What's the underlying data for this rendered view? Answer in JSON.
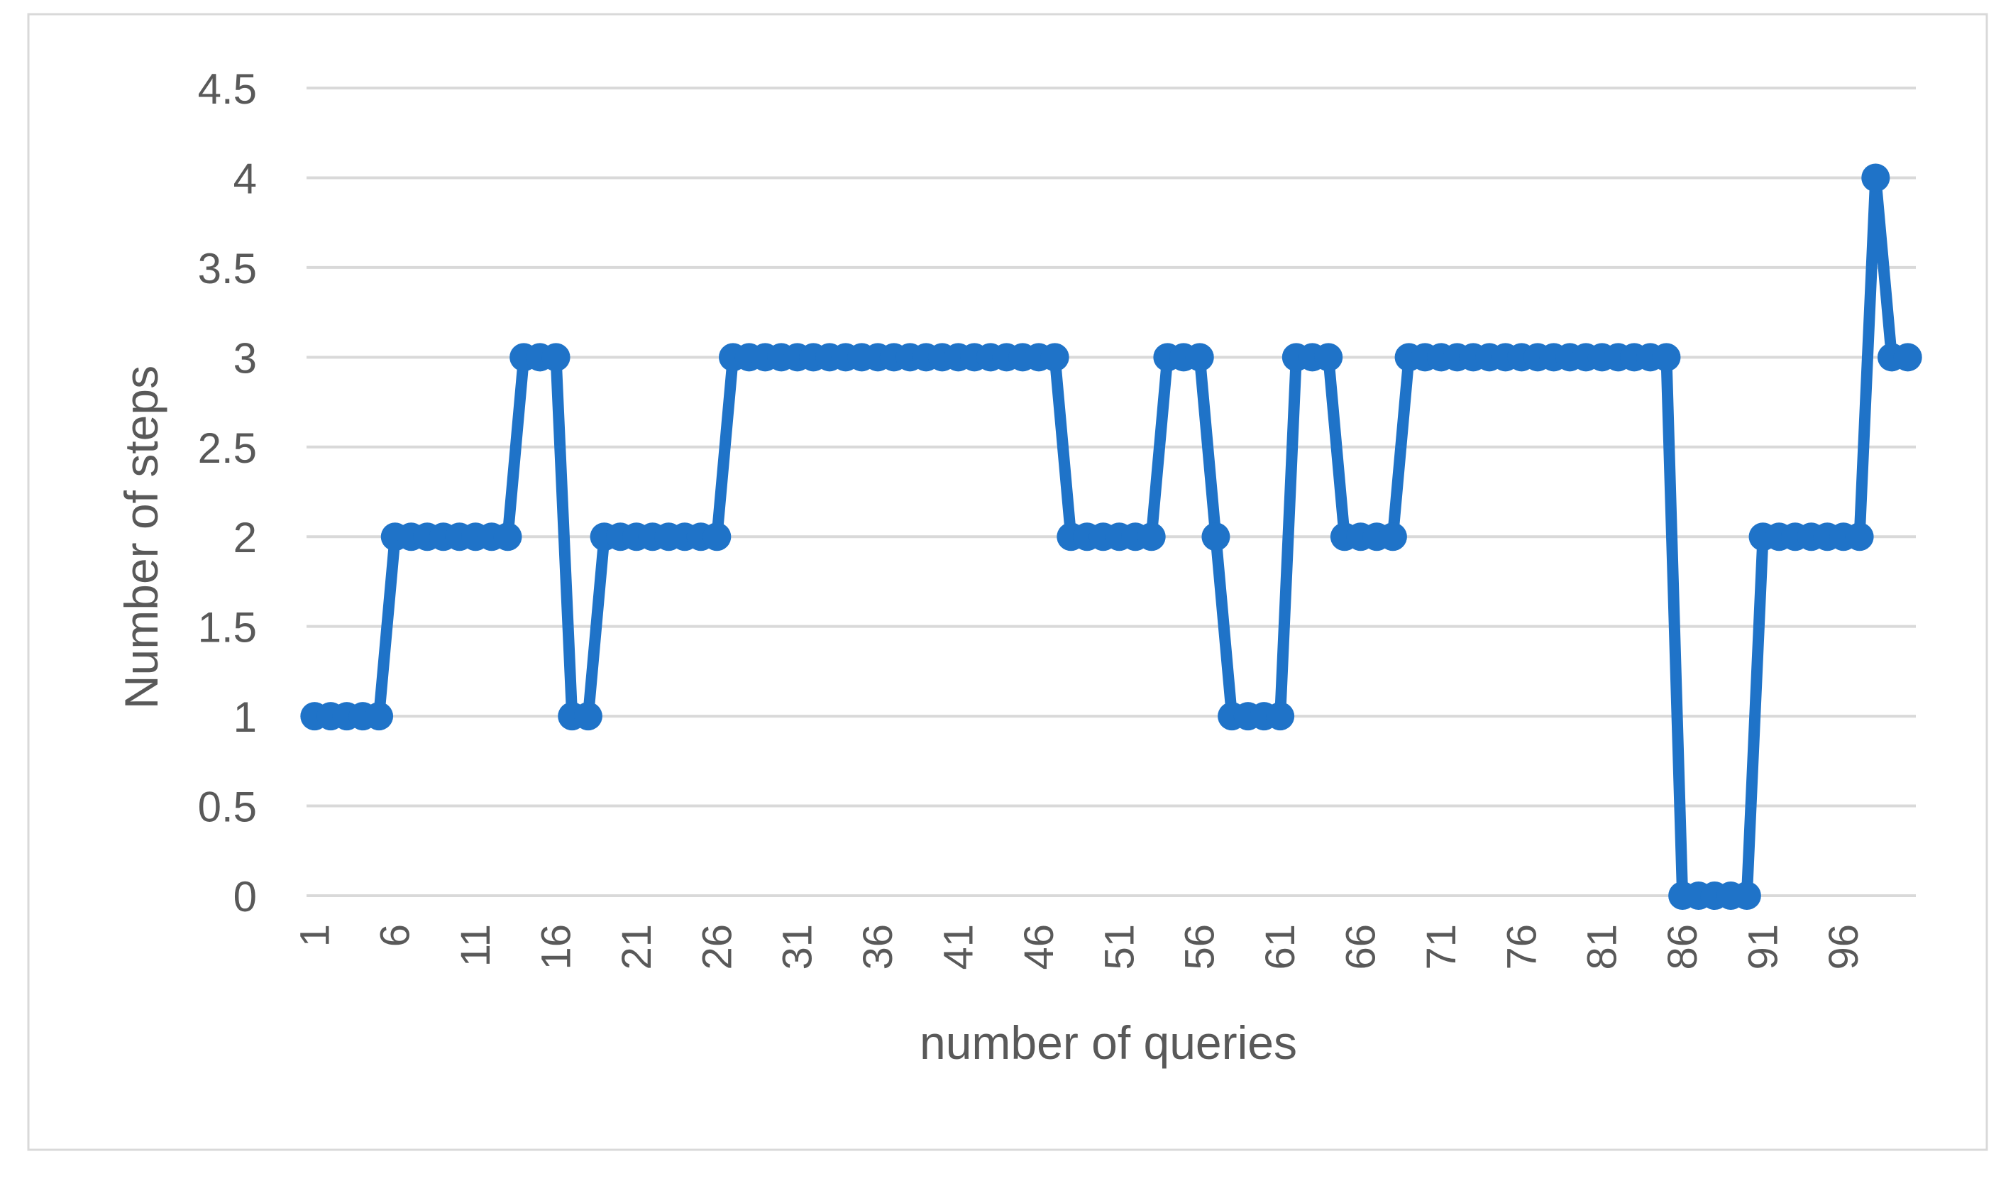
{
  "chart_data": {
    "type": "line",
    "title": "",
    "xlabel": "number of queries",
    "ylabel": "Number of steps",
    "ylim": [
      0,
      4.5
    ],
    "y_ticks": [
      "0",
      "0.5",
      "1",
      "1.5",
      "2",
      "2.5",
      "3",
      "3.5",
      "4",
      "4.5"
    ],
    "x_tick_labels": [
      "1",
      "6",
      "11",
      "16",
      "21",
      "26",
      "31",
      "36",
      "41",
      "46",
      "51",
      "56",
      "61",
      "66",
      "71",
      "76",
      "81",
      "86",
      "91",
      "96"
    ],
    "x": [
      1,
      2,
      3,
      4,
      5,
      6,
      7,
      8,
      9,
      10,
      11,
      12,
      13,
      14,
      15,
      16,
      17,
      18,
      19,
      20,
      21,
      22,
      23,
      24,
      25,
      26,
      27,
      28,
      29,
      30,
      31,
      32,
      33,
      34,
      35,
      36,
      37,
      38,
      39,
      40,
      41,
      42,
      43,
      44,
      45,
      46,
      47,
      48,
      49,
      50,
      51,
      52,
      53,
      54,
      55,
      56,
      57,
      58,
      59,
      60,
      61,
      62,
      63,
      64,
      65,
      66,
      67,
      68,
      69,
      70,
      71,
      72,
      73,
      74,
      75,
      76,
      77,
      78,
      79,
      80,
      81,
      82,
      83,
      84,
      85,
      86,
      87,
      88,
      89,
      90,
      91,
      92,
      93,
      94,
      95,
      96,
      97,
      98,
      99,
      100
    ],
    "series": [
      {
        "name": "",
        "color": "#1f73c8",
        "values": [
          1,
          1,
          1,
          1,
          1,
          2,
          2,
          2,
          2,
          2,
          2,
          2,
          2,
          3,
          3,
          3,
          1,
          1,
          2,
          2,
          2,
          2,
          2,
          2,
          2,
          2,
          3,
          3,
          3,
          3,
          3,
          3,
          3,
          3,
          3,
          3,
          3,
          3,
          3,
          3,
          3,
          3,
          3,
          3,
          3,
          3,
          3,
          2,
          2,
          2,
          2,
          2,
          2,
          3,
          3,
          3,
          2,
          1,
          1,
          1,
          1,
          3,
          3,
          3,
          2,
          2,
          2,
          2,
          3,
          3,
          3,
          3,
          3,
          3,
          3,
          3,
          3,
          3,
          3,
          3,
          3,
          3,
          3,
          3,
          3,
          0,
          0,
          0,
          0,
          0,
          2,
          2,
          2,
          2,
          2,
          2,
          2,
          4,
          3,
          3
        ]
      }
    ],
    "grid": true,
    "legend": "none",
    "colors": {
      "series": "#1f73c8",
      "grid": "#d9d9d9",
      "text": "#595959",
      "border": "#d9d9d9"
    }
  }
}
